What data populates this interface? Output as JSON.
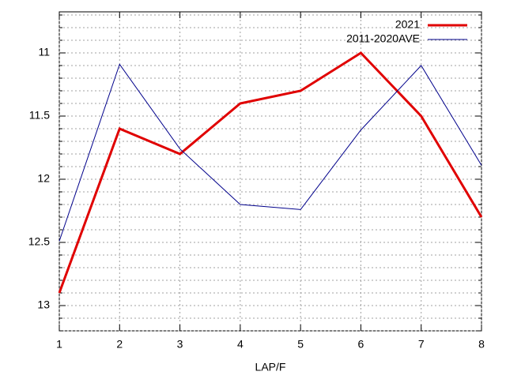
{
  "chart_data": {
    "type": "line",
    "x_label": "LAP/F",
    "x": [
      1,
      2,
      3,
      4,
      5,
      6,
      7,
      8
    ],
    "series": [
      {
        "name": "2021",
        "color": "#e00000",
        "width": 3,
        "values": [
          12.9,
          11.6,
          11.8,
          11.4,
          11.3,
          11.0,
          11.5,
          12.3
        ]
      },
      {
        "name": "2011-2020AVE",
        "color": "#00008b",
        "width": 1,
        "values": [
          12.49,
          11.09,
          11.76,
          12.2,
          12.24,
          11.61,
          11.1,
          11.89
        ]
      }
    ],
    "xlim": [
      1,
      8
    ],
    "xticks": [
      1,
      2,
      3,
      4,
      5,
      6,
      7,
      8
    ],
    "ylim": [
      10.7,
      13.2
    ],
    "yticks": [
      11,
      {
        "value": 11.5,
        "label": "11.5"
      },
      12,
      {
        "value": 12.5,
        "label": "12.5"
      },
      13
    ],
    "y_minor_divisions": 5,
    "grid": true,
    "legend": "top-right"
  }
}
